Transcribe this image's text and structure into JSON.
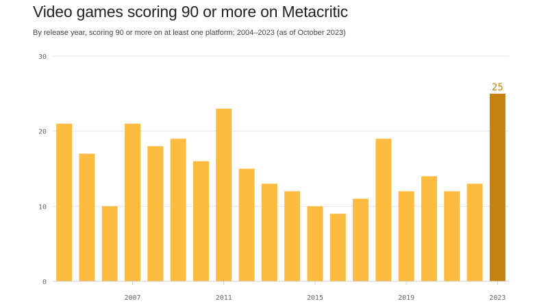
{
  "title": "Video games scoring 90 or more on Metacritic",
  "subtitle": "By release year, scoring 90 or more on at least one platform; 2004–2023 (as of October 2023)",
  "colors": {
    "bar": "#fdbb3f",
    "highlight": "#c5820f",
    "grid": "#e6e6e6",
    "axis": "#cccccc"
  },
  "chart_data": {
    "type": "bar",
    "title": "Video games scoring 90 or more on Metacritic",
    "subtitle": "By release year, scoring 90 or more on at least one platform; 2004–2023 (as of October 2023)",
    "categories": [
      2004,
      2005,
      2006,
      2007,
      2008,
      2009,
      2010,
      2011,
      2012,
      2013,
      2014,
      2015,
      2016,
      2017,
      2018,
      2019,
      2020,
      2021,
      2022,
      2023
    ],
    "values": [
      21,
      17,
      10,
      21,
      18,
      19,
      16,
      23,
      15,
      13,
      12,
      10,
      9,
      11,
      19,
      12,
      14,
      12,
      13,
      25
    ],
    "ylim": [
      0,
      30
    ],
    "yticks": [
      0,
      10,
      20,
      30
    ],
    "xtick_labels": [
      "2007",
      "2011",
      "2015",
      "2019",
      "2023"
    ],
    "highlight_category": 2023,
    "data_labels": [
      {
        "category": 2023,
        "text": "25"
      }
    ],
    "xlabel": "",
    "ylabel": "",
    "grid": true
  }
}
